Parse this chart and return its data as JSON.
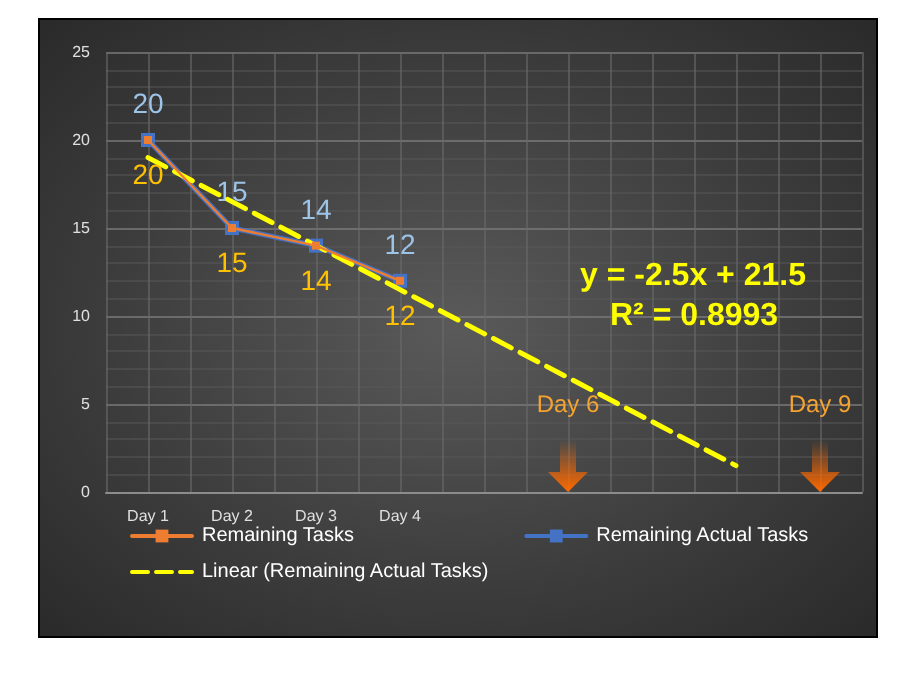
{
  "chart_data": {
    "type": "line",
    "categories": [
      "Day 1",
      "Day 2",
      "Day 3",
      "Day 4",
      null,
      null,
      null,
      null,
      null
    ],
    "series": [
      {
        "name": "Remaining Tasks",
        "color": "#ed7d31",
        "values": [
          20,
          15,
          14,
          12,
          null,
          null,
          null,
          null,
          null
        ]
      },
      {
        "name": "Remaining Actual Tasks",
        "color": "#4472c4",
        "values": [
          20,
          15,
          14,
          12,
          null,
          null,
          null,
          null,
          null
        ]
      },
      {
        "name": "Linear (Remaining Actual Tasks)",
        "color": "#ffff00",
        "values": [
          19,
          16.5,
          14,
          11.5,
          9,
          6.5,
          4,
          1.5,
          null
        ],
        "value_labels": [
          null,
          null,
          null,
          null,
          null,
          null,
          null,
          null,
          null
        ],
        "line_style": "dashed",
        "marker": "none"
      }
    ],
    "ylim": [
      0,
      25
    ],
    "yticks": [
      0,
      5,
      10,
      15,
      20,
      25
    ],
    "annotations": [
      "y = -2.5x + 21.5",
      "R² = 0.8993",
      "Day 6",
      "Day 9"
    ],
    "data_labels": true,
    "grid": true,
    "legend": "bottom",
    "marker": "square",
    "line_style": "solid"
  }
}
